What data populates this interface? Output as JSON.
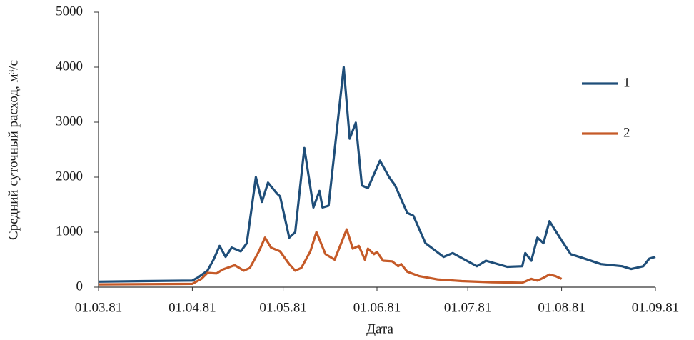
{
  "chart_data": {
    "type": "line",
    "x_label": "Дата",
    "y_label": "Средний суточный расход, м³/с",
    "xlim": [
      "1981-03-01",
      "1981-09-01"
    ],
    "xticks": [
      {
        "value": "1981-03-01",
        "label": "01.03.81"
      },
      {
        "value": "1981-04-01",
        "label": "01.04.81"
      },
      {
        "value": "1981-05-01",
        "label": "01.05.81"
      },
      {
        "value": "1981-06-01",
        "label": "01.06.81"
      },
      {
        "value": "1981-07-01",
        "label": "01.07.81"
      },
      {
        "value": "1981-08-01",
        "label": "01.08.81"
      },
      {
        "value": "1981-09-01",
        "label": "01.09.81"
      }
    ],
    "ylim": [
      0,
      5000
    ],
    "yticks": [
      0,
      1000,
      2000,
      3000,
      4000,
      5000
    ],
    "grid": false,
    "legend_position": "right",
    "series": [
      {
        "name": "1",
        "color": "#1f4e79",
        "x": [
          "1981-03-01",
          "1981-03-16",
          "1981-04-01",
          "1981-04-03",
          "1981-04-06",
          "1981-04-08",
          "1981-04-10",
          "1981-04-12",
          "1981-04-14",
          "1981-04-17",
          "1981-04-19",
          "1981-04-22",
          "1981-04-24",
          "1981-04-26",
          "1981-04-29",
          "1981-04-30",
          "1981-05-03",
          "1981-05-05",
          "1981-05-08",
          "1981-05-11",
          "1981-05-13",
          "1981-05-14",
          "1981-05-16",
          "1981-05-21",
          "1981-05-23",
          "1981-05-25",
          "1981-05-27",
          "1981-05-29",
          "1981-06-02",
          "1981-06-05",
          "1981-06-07",
          "1981-06-11",
          "1981-06-13",
          "1981-06-17",
          "1981-06-23",
          "1981-06-26",
          "1981-06-30",
          "1981-07-04",
          "1981-07-07",
          "1981-07-14",
          "1981-07-19",
          "1981-07-20",
          "1981-07-22",
          "1981-07-24",
          "1981-07-26",
          "1981-07-28",
          "1981-08-01",
          "1981-08-04",
          "1981-08-08",
          "1981-08-14",
          "1981-08-21",
          "1981-08-24",
          "1981-08-28",
          "1981-08-30",
          "1981-09-01"
        ],
        "values": [
          100,
          110,
          120,
          180,
          300,
          500,
          750,
          550,
          720,
          650,
          800,
          2000,
          1550,
          1900,
          1700,
          1650,
          900,
          1000,
          2530,
          1450,
          1750,
          1450,
          1480,
          4000,
          2700,
          2990,
          1850,
          1800,
          2300,
          2000,
          1850,
          1350,
          1300,
          800,
          550,
          620,
          500,
          380,
          480,
          370,
          380,
          620,
          480,
          900,
          800,
          1200,
          850,
          600,
          530,
          420,
          380,
          330,
          380,
          520,
          550
        ]
      },
      {
        "name": "2",
        "color": "#c55a28",
        "x": [
          "1981-03-01",
          "1981-04-01",
          "1981-04-04",
          "1981-04-06",
          "1981-04-09",
          "1981-04-11",
          "1981-04-15",
          "1981-04-18",
          "1981-04-20",
          "1981-04-23",
          "1981-04-25",
          "1981-04-27",
          "1981-04-30",
          "1981-05-03",
          "1981-05-05",
          "1981-05-07",
          "1981-05-10",
          "1981-05-12",
          "1981-05-15",
          "1981-05-18",
          "1981-05-22",
          "1981-05-24",
          "1981-05-26",
          "1981-05-28",
          "1981-05-29",
          "1981-05-31",
          "1981-06-01",
          "1981-06-03",
          "1981-06-06",
          "1981-06-08",
          "1981-06-09",
          "1981-06-11",
          "1981-06-15",
          "1981-06-21",
          "1981-06-29",
          "1981-07-09",
          "1981-07-19",
          "1981-07-22",
          "1981-07-24",
          "1981-07-26",
          "1981-07-28",
          "1981-07-30",
          "1981-08-01"
        ],
        "values": [
          50,
          60,
          150,
          260,
          250,
          320,
          400,
          300,
          350,
          650,
          900,
          720,
          650,
          420,
          300,
          350,
          650,
          1000,
          600,
          500,
          1050,
          700,
          750,
          500,
          700,
          600,
          640,
          480,
          470,
          380,
          420,
          280,
          200,
          140,
          110,
          90,
          80,
          150,
          120,
          170,
          230,
          200,
          150
        ]
      }
    ]
  }
}
